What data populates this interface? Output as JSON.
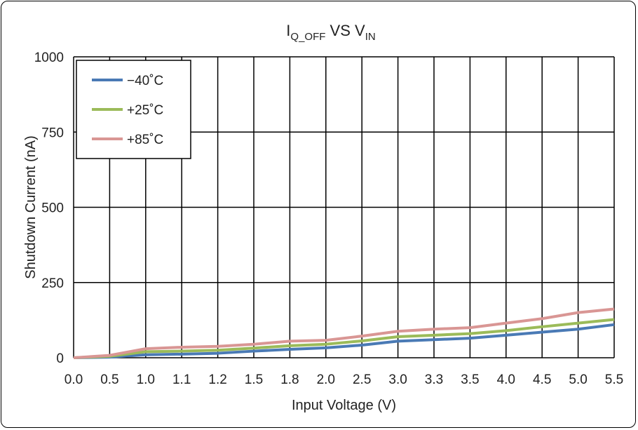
{
  "chart_data": {
    "type": "line",
    "title_parts": [
      {
        "text": "I",
        "sub": false
      },
      {
        "text": "Q_OFF",
        "sub": true
      },
      {
        "text": " VS V",
        "sub": false
      },
      {
        "text": "IN",
        "sub": true
      }
    ],
    "xlabel": "Input Voltage (V)",
    "ylabel": "Shutdown Current (nA)",
    "x": [
      "0.0",
      "0.5",
      "1.0",
      "1.1",
      "1.2",
      "1.5",
      "1.8",
      "2.0",
      "2.5",
      "3.0",
      "3.3",
      "3.5",
      "4.0",
      "4.5",
      "5.0",
      "5.5"
    ],
    "ylim": [
      0,
      1000
    ],
    "yticks": [
      "0",
      "250",
      "500",
      "750",
      "1000"
    ],
    "grid": true,
    "legend_position": "top-left",
    "series": [
      {
        "name": "−40˚C",
        "color": "#4a7ab5",
        "values": [
          0,
          2,
          10,
          12,
          15,
          22,
          28,
          33,
          42,
          55,
          60,
          65,
          75,
          85,
          95,
          110
        ]
      },
      {
        "name": "+25˚C",
        "color": "#9bbb59",
        "values": [
          0,
          5,
          20,
          22,
          25,
          32,
          40,
          45,
          56,
          70,
          75,
          80,
          90,
          103,
          115,
          127
        ]
      },
      {
        "name": "+85˚C",
        "color": "#d99694",
        "values": [
          0,
          8,
          30,
          35,
          38,
          45,
          55,
          58,
          72,
          88,
          95,
          100,
          115,
          130,
          150,
          162
        ]
      }
    ]
  }
}
